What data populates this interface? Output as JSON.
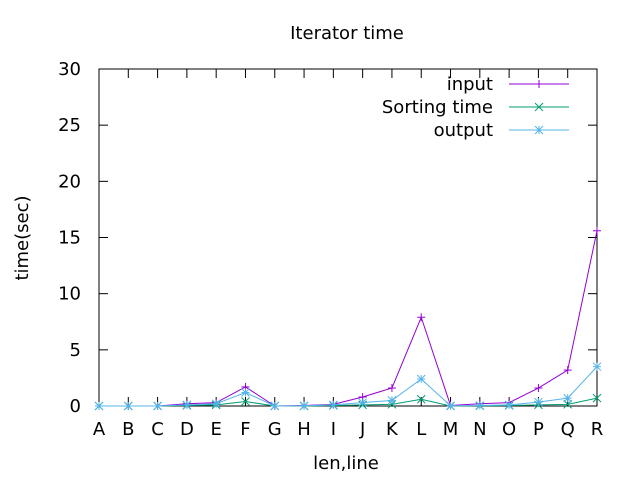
{
  "chart_data": {
    "type": "line",
    "title": "Iterator time",
    "xlabel": "len,line",
    "ylabel": "time(sec)",
    "ylim": [
      0,
      30
    ],
    "yticks": [
      "0",
      "5",
      "10",
      "15",
      "20",
      "25",
      "30"
    ],
    "categories": [
      "A",
      "B",
      "C",
      "D",
      "E",
      "F",
      "G",
      "H",
      "I",
      "J",
      "K",
      "L",
      "M",
      "N",
      "O",
      "P",
      "Q",
      "R"
    ],
    "legend_position": "top-right",
    "grid": false,
    "series": [
      {
        "name": "input",
        "color": "#9400d3",
        "marker": "plus",
        "values": [
          0,
          0,
          0,
          0.2,
          0.3,
          1.7,
          0,
          0.05,
          0.15,
          0.8,
          1.6,
          7.9,
          0.05,
          0.2,
          0.3,
          1.6,
          3.2,
          15.6
        ]
      },
      {
        "name": "Sorting time",
        "color": "#009e73",
        "marker": "cross",
        "values": [
          0,
          0,
          0,
          0.05,
          0.1,
          0.4,
          0,
          0,
          0.05,
          0.1,
          0.15,
          0.6,
          0,
          0.02,
          0.05,
          0.1,
          0.15,
          0.7
        ]
      },
      {
        "name": "output",
        "color": "#56b4e9",
        "marker": "star",
        "values": [
          0,
          0,
          0,
          0.1,
          0.2,
          1.2,
          0,
          0.02,
          0.1,
          0.3,
          0.5,
          2.4,
          0.02,
          0.05,
          0.1,
          0.35,
          0.7,
          3.5
        ]
      }
    ]
  }
}
